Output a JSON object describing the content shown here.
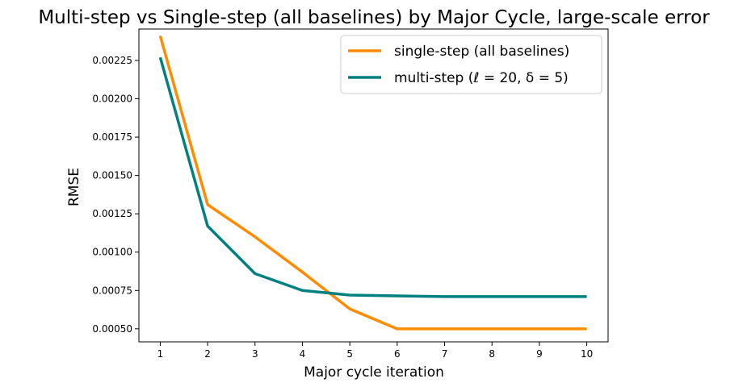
{
  "chart_data": {
    "type": "line",
    "title": "Multi-step vs Single-step (all baselines) by Major Cycle, large-scale error",
    "xlabel": "Major cycle iteration",
    "ylabel": "RMSE",
    "x": [
      1,
      2,
      3,
      4,
      5,
      6,
      7,
      8,
      9,
      10
    ],
    "x_ticks": [
      "1",
      "2",
      "3",
      "4",
      "5",
      "6",
      "7",
      "8",
      "9",
      "10"
    ],
    "y_ticks": [
      "0.00050",
      "0.00075",
      "0.00100",
      "0.00125",
      "0.00150",
      "0.00175",
      "0.00200",
      "0.00225"
    ],
    "y_tick_values": [
      0.0005,
      0.00075,
      0.001,
      0.00125,
      0.0015,
      0.00175,
      0.002,
      0.00225
    ],
    "xlim": [
      0.55,
      10.45
    ],
    "ylim": [
      0.000415,
      0.002455
    ],
    "grid": false,
    "legend_position": "top-right",
    "series": [
      {
        "name": "single-step (all baselines)",
        "color": "#ff8c00",
        "values": [
          0.00241,
          0.00131,
          0.0011,
          0.00087,
          0.00063,
          0.0005,
          0.0005,
          0.0005,
          0.0005,
          0.0005
        ]
      },
      {
        "name": "multi-step (ℓ = 20, δ = 5)",
        "color": "#008080",
        "values": [
          0.00227,
          0.00117,
          0.00086,
          0.00075,
          0.00072,
          0.000715,
          0.00071,
          0.00071,
          0.00071,
          0.00071
        ]
      }
    ]
  }
}
